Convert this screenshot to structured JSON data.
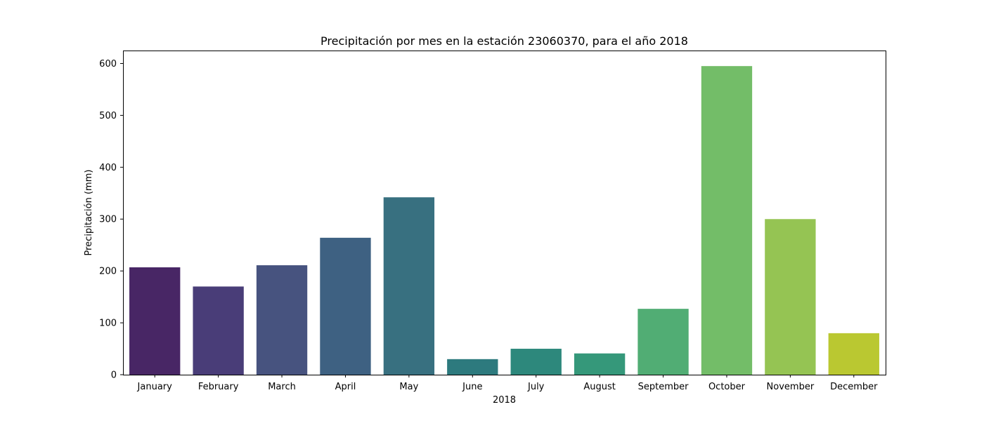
{
  "chart_data": {
    "type": "bar",
    "title": "Precipitación por mes en la estación 23060370, para el año 2018",
    "xlabel": "2018",
    "ylabel": "Precipitación (mm)",
    "categories": [
      "January",
      "February",
      "March",
      "April",
      "May",
      "June",
      "July",
      "August",
      "September",
      "October",
      "November",
      "December"
    ],
    "values": [
      207,
      170,
      211,
      264,
      342,
      30,
      50,
      41,
      127,
      595,
      300,
      80
    ],
    "colors": [
      "#482665",
      "#493d78",
      "#47537f",
      "#3e6182",
      "#387080",
      "#2d7a7e",
      "#2d887c",
      "#35987a",
      "#51ad74",
      "#73bd68",
      "#95c453",
      "#bac831"
    ],
    "ylim": [
      0,
      625
    ],
    "yticks": [
      0,
      100,
      200,
      300,
      400,
      500,
      600
    ],
    "grid": false,
    "legend": "none"
  }
}
